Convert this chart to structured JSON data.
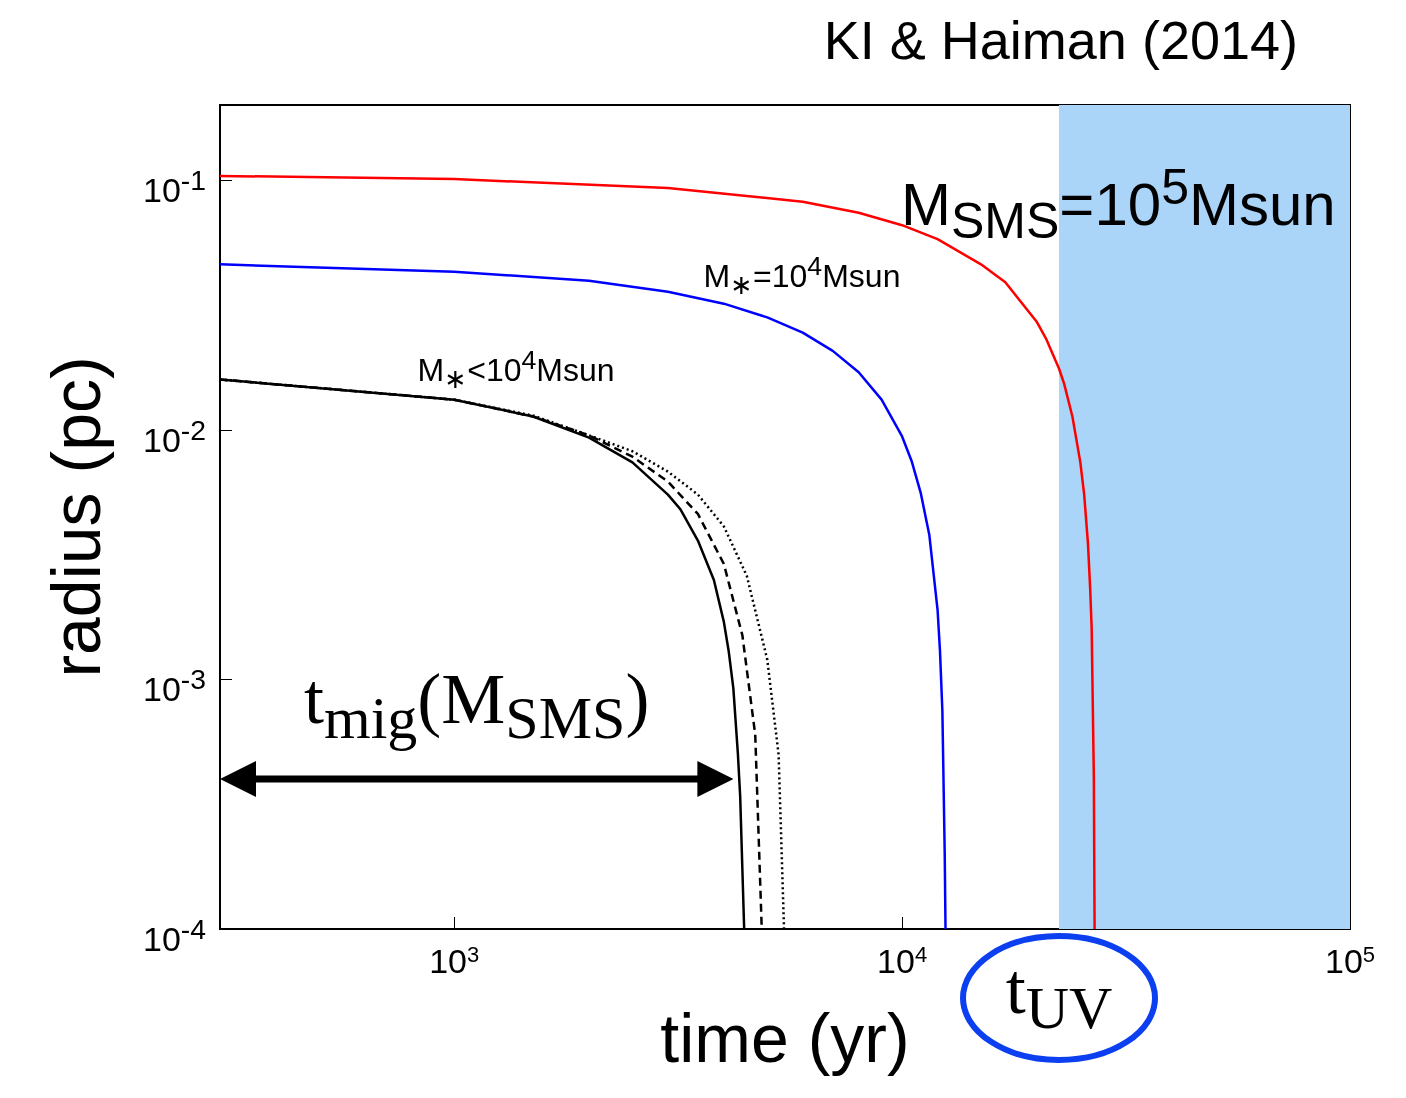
{
  "chart_data": {
    "type": "line",
    "title": "KI & Haiman (2014)",
    "xlabel": "time (yr)",
    "ylabel": "radius (pc)",
    "log": "xy",
    "grid": false,
    "marker": "none",
    "xlim": [
      300,
      100000
    ],
    "xticks": [
      {
        "value": 1000,
        "label": "10$^{3}$"
      },
      {
        "value": 10000,
        "label": "10$^{4}$"
      },
      {
        "value": 100000,
        "label": "10$^{5}$"
      }
    ],
    "ylim": [
      0.0001,
      0.2
    ],
    "yticks": [
      {
        "value": 0.0001,
        "label": "10$^{-4}$"
      },
      {
        "value": 0.001,
        "label": "10$^{-3}$"
      },
      {
        "value": 0.01,
        "label": "10$^{-2}$"
      },
      {
        "value": 0.1,
        "label": "10$^{-1}$"
      }
    ],
    "bands": [
      {
        "axis": "x",
        "from": 22400,
        "to": 100000,
        "color": "#aad4f8"
      }
    ],
    "series": [
      {
        "color": "#ff0000",
        "line_style": "solid",
        "x": [
          300,
          1000,
          3000,
          6000,
          8000,
          10000,
          12000,
          15000,
          17000,
          20000,
          21000,
          22400,
          23000,
          24000,
          25000,
          25500,
          26000,
          26300,
          26500,
          26800,
          26900
        ],
        "values": [
          0.104,
          0.101,
          0.093,
          0.082,
          0.074,
          0.066,
          0.058,
          0.046,
          0.039,
          0.027,
          0.023,
          0.0176,
          0.0153,
          0.0113,
          0.0074,
          0.0055,
          0.0035,
          0.0023,
          0.0016,
          0.0004,
          0.0001
        ]
      },
      {
        "color": "#0000ff",
        "line_style": "solid",
        "x": [
          300,
          1000,
          2000,
          3000,
          4000,
          5000,
          6000,
          7000,
          8000,
          9000,
          10000,
          10500,
          11000,
          11500,
          12000,
          12150,
          12300,
          12450,
          12500
        ],
        "values": [
          0.046,
          0.043,
          0.0395,
          0.0357,
          0.032,
          0.0282,
          0.0245,
          0.0207,
          0.017,
          0.0132,
          0.0094,
          0.0075,
          0.0056,
          0.0038,
          0.0019,
          0.0013,
          0.00075,
          0.0002,
          0.0001
        ]
      },
      {
        "color": "#000000",
        "line_style": "dotted",
        "x": [
          300,
          1000,
          1500,
          2000,
          2500,
          3000,
          3500,
          4000,
          4500,
          5000,
          5300,
          5450
        ],
        "values": [
          0.0159,
          0.0132,
          0.0114,
          0.0095,
          0.0082,
          0.0068,
          0.0055,
          0.0041,
          0.0026,
          0.0012,
          0.0005,
          0.0001
        ]
      },
      {
        "color": "#000000",
        "line_style": "dashed",
        "x": [
          300,
          1000,
          1500,
          2000,
          2500,
          3000,
          3500,
          4000,
          4400,
          4700,
          4860
        ],
        "values": [
          0.0159,
          0.0132,
          0.0113,
          0.0095,
          0.0078,
          0.0062,
          0.0046,
          0.0029,
          0.0015,
          0.0006,
          0.0001
        ]
      },
      {
        "color": "#000000",
        "line_style": "solid",
        "x": [
          300,
          1000,
          1500,
          2000,
          2500,
          3000,
          3200,
          3500,
          3800,
          4000,
          4100,
          4200,
          4300,
          4350,
          4440
        ],
        "values": [
          0.0159,
          0.0132,
          0.0113,
          0.0093,
          0.0074,
          0.0055,
          0.0048,
          0.0036,
          0.0025,
          0.0017,
          0.0013,
          0.00092,
          0.0005,
          0.00034,
          0.0001
        ]
      }
    ],
    "annotations": [
      "M$_{SMS}$=10$^{5}$Msun",
      "M$_{∗}$=10$^{4}$Msun",
      "M$_{∗}$<10$^{4}$Msun",
      {
        "text": "t$_{mig}$(M$_{SMS}$)",
        "x": 4200,
        "y": 0.0004
      },
      "t$_{UV}$"
    ]
  }
}
